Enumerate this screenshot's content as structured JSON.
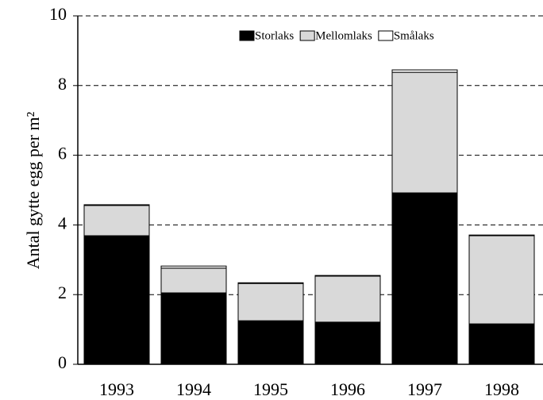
{
  "chart_data": {
    "type": "bar",
    "stacked": true,
    "y_label": "Antal gytte egg per m²",
    "categories": [
      "1993",
      "1994",
      "1995",
      "1996",
      "1997",
      "1998"
    ],
    "series": [
      {
        "name": "Storlaks",
        "color": "#000000",
        "values": [
          3.69,
          2.05,
          1.25,
          1.21,
          4.92,
          1.16
        ]
      },
      {
        "name": "Mellomlaks",
        "color": "#d9d9d9",
        "values": [
          0.87,
          0.71,
          1.07,
          1.32,
          3.46,
          2.53
        ]
      },
      {
        "name": "Smålaks",
        "color": "#ffffff",
        "values": [
          0.02,
          0.06,
          0.02,
          0.02,
          0.07,
          0.02
        ]
      }
    ],
    "ylim": [
      0,
      10
    ],
    "yticks": [
      0,
      2,
      4,
      6,
      8,
      10
    ],
    "grid": true,
    "legend": "top-right"
  }
}
